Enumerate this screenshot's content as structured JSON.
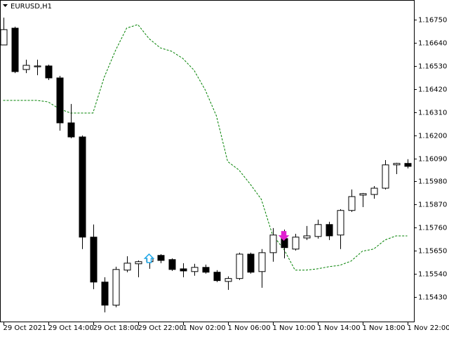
{
  "chart_data": {
    "type": "candlestick",
    "title": "EURUSD,H1",
    "categories": [
      "29 Oct 2021",
      null,
      null,
      null,
      "29 Oct 14:00",
      null,
      null,
      null,
      "29 Oct 18:00",
      null,
      null,
      null,
      "29 Oct 22:00",
      null,
      null,
      null,
      "1 Nov 02:00",
      null,
      null,
      null,
      "1 Nov 06:00",
      null,
      null,
      null,
      "1 Nov 10:00",
      null,
      null,
      null,
      "1 Nov 14:00",
      null,
      null,
      null,
      "1 Nov 18:00",
      null,
      null,
      null,
      "1 Nov 22:00"
    ],
    "open": [
      1.1663,
      1.1671,
      1.16513,
      1.16526,
      1.1653,
      1.16473,
      1.16259,
      1.16192,
      1.15715,
      1.15501,
      1.15391,
      1.15558,
      1.15588,
      1.15598,
      1.15628,
      1.15608,
      1.15564,
      1.15551,
      1.15571,
      1.15548,
      1.15504,
      1.15518,
      1.15634,
      1.15551,
      1.15641,
      1.15708,
      1.15658,
      1.15711,
      1.15718,
      1.15775,
      1.15725,
      1.15842,
      1.15915,
      1.15918,
      1.15948,
      1.16059,
      1.16066
    ],
    "high": [
      1.1676,
      1.16717,
      1.1656,
      1.1656,
      1.16536,
      1.16483,
      1.16349,
      1.16199,
      1.15775,
      1.15524,
      1.15574,
      1.15624,
      1.15604,
      1.15621,
      1.15634,
      1.15614,
      1.15591,
      1.15588,
      1.15584,
      1.15558,
      1.15528,
      1.15641,
      1.15641,
      1.15658,
      1.15758,
      1.15751,
      1.15731,
      1.15768,
      1.15798,
      1.15788,
      1.15848,
      1.15942,
      1.15925,
      1.15958,
      1.16082,
      1.16069,
      1.16086
    ],
    "low": [
      1.1663,
      1.16496,
      1.16496,
      1.16486,
      1.16463,
      1.16222,
      1.16186,
      1.15658,
      1.15467,
      1.15357,
      1.15381,
      1.15548,
      1.15524,
      1.15564,
      1.15591,
      1.15554,
      1.15524,
      1.15531,
      1.15541,
      1.15501,
      1.15464,
      1.15511,
      1.15541,
      1.15474,
      1.15598,
      1.15614,
      1.15651,
      1.15701,
      1.15708,
      1.15701,
      1.15658,
      1.15835,
      1.15858,
      1.15898,
      1.15942,
      1.16015,
      1.16042
    ],
    "close": [
      1.16703,
      1.16503,
      1.16533,
      1.1653,
      1.16473,
      1.16259,
      1.16192,
      1.15715,
      1.15501,
      1.15391,
      1.15561,
      1.15591,
      1.15598,
      1.15614,
      1.15604,
      1.15561,
      1.15554,
      1.15571,
      1.15548,
      1.15508,
      1.15518,
      1.15634,
      1.15548,
      1.15641,
      1.15725,
      1.15665,
      1.15715,
      1.15721,
      1.15775,
      1.15721,
      1.15842,
      1.15908,
      1.15922,
      1.15948,
      1.16059,
      1.16066,
      1.16052
    ],
    "up_color": "#ffffff",
    "down_color": "#000000",
    "line": {
      "color": "#008000",
      "dashed": true,
      "values": [
        1.16366,
        1.16366,
        1.16366,
        1.16366,
        1.16359,
        1.16326,
        1.16306,
        1.16306,
        1.16306,
        1.16476,
        1.16603,
        1.1671,
        1.16727,
        1.1666,
        1.16616,
        1.166,
        1.16566,
        1.1651,
        1.16416,
        1.16292,
        1.16075,
        1.16035,
        1.15968,
        1.15895,
        1.15725,
        1.15658,
        1.15558,
        1.15558,
        1.15564,
        1.15574,
        1.15581,
        1.15601,
        1.15648,
        1.15658,
        1.15701,
        1.15721,
        1.15721
      ]
    },
    "markers": [
      {
        "index": 13,
        "direction": "up",
        "color": "#1ea7e8",
        "value": 1.15634
      },
      {
        "index": 25,
        "direction": "down",
        "color": "#e020d0",
        "value": 1.15701
      }
    ],
    "ylim": [
      1.15313,
      1.16844
    ],
    "yticks": [
      {
        "value": 1.1675,
        "label": "1.16750"
      },
      {
        "value": 1.1664,
        "label": "1.16640"
      },
      {
        "value": 1.1653,
        "label": "1.16530"
      },
      {
        "value": 1.1642,
        "label": "1.16420"
      },
      {
        "value": 1.1631,
        "label": "1.16310"
      },
      {
        "value": 1.162,
        "label": "1.16200"
      },
      {
        "value": 1.1609,
        "label": "1.16090"
      },
      {
        "value": 1.1598,
        "label": "1.15980"
      },
      {
        "value": 1.1587,
        "label": "1.15870"
      },
      {
        "value": 1.1576,
        "label": "1.15760"
      },
      {
        "value": 1.1565,
        "label": "1.15650"
      },
      {
        "value": 1.1554,
        "label": "1.15540"
      },
      {
        "value": 1.1543,
        "label": "1.15430"
      }
    ]
  }
}
